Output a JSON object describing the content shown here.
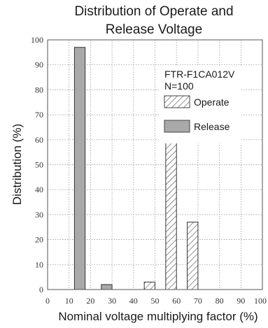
{
  "chart_data": {
    "type": "bar",
    "title_lines": [
      "Distribution of Operate and",
      "Release Voltage"
    ],
    "xlabel": "Nominal voltage multiplying factor (%)",
    "ylabel": "Distribution (%)",
    "xlim": [
      0,
      100
    ],
    "ylim": [
      0,
      100
    ],
    "xticks": [
      "0",
      "10",
      "20",
      "30",
      "40",
      "50",
      "60",
      "70",
      "80",
      "90",
      "100"
    ],
    "yticks": [
      "0",
      "10",
      "20",
      "30",
      "40",
      "50",
      "60",
      "70",
      "80",
      "90",
      "100"
    ],
    "grid": true,
    "annotation": [
      "FTR-F1CA012V",
      "N=100"
    ],
    "legend_position": "top-right",
    "series": [
      {
        "name": "Operate",
        "pattern": "hatched",
        "bars": [
          {
            "x_start": 45,
            "x_end": 50,
            "value": 3
          },
          {
            "x_start": 55,
            "x_end": 60,
            "value": 60
          },
          {
            "x_start": 65,
            "x_end": 70,
            "value": 27
          }
        ]
      },
      {
        "name": "Release",
        "pattern": "solid",
        "color": "#a9a9a9",
        "bars": [
          {
            "x_start": 12.5,
            "x_end": 17.5,
            "value": 97
          },
          {
            "x_start": 25,
            "x_end": 30,
            "value": 2
          }
        ]
      }
    ]
  }
}
